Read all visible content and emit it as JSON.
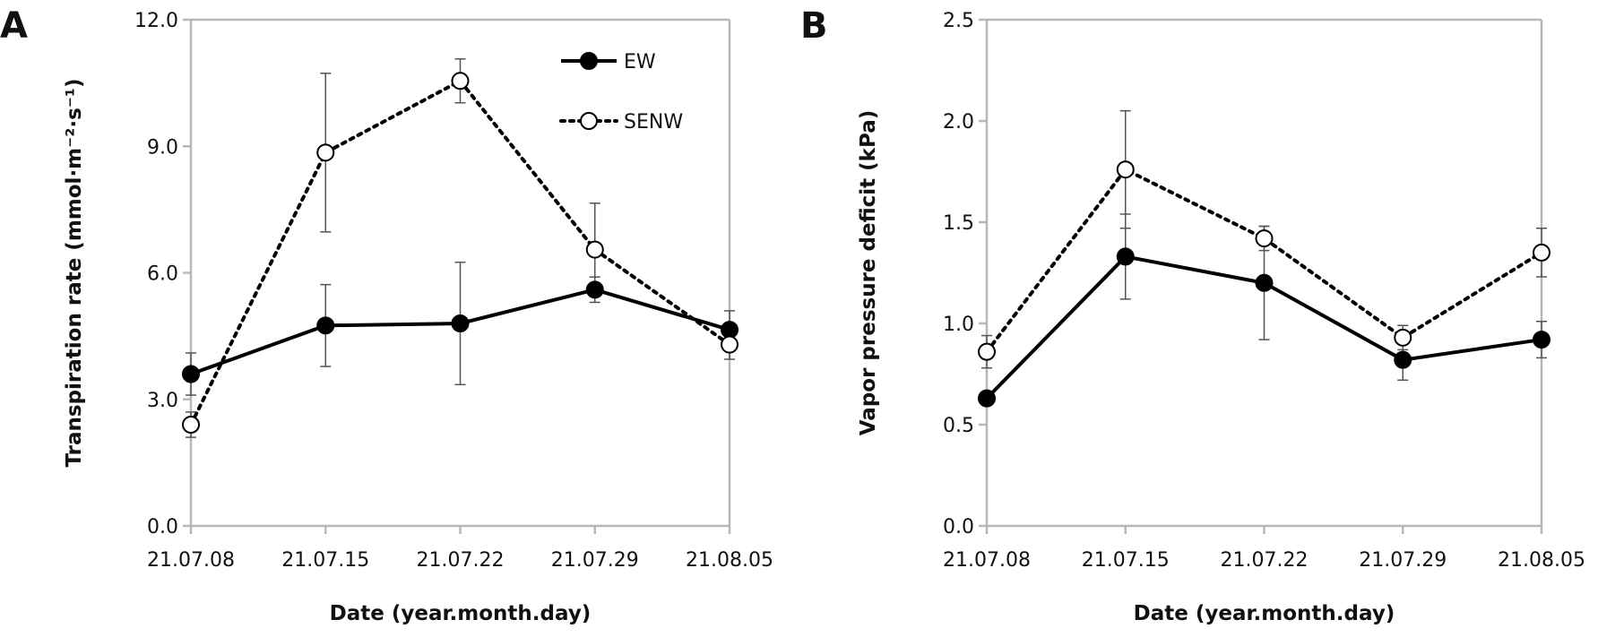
{
  "chart_data": [
    {
      "type": "line",
      "panel_label": "A",
      "categories": [
        "21.07.08",
        "21.07.15",
        "21.07.22",
        "21.07.29",
        "21.08.05"
      ],
      "xlabel": "Date (year.month.day)",
      "ylabel": "Transpiration rate (mmol·m⁻²·s⁻¹)",
      "ylim": [
        0,
        12
      ],
      "yticks": [
        "0.0",
        "3.0",
        "6.0",
        "9.0",
        "12.0"
      ],
      "grid": false,
      "legend": {
        "placement": "top-right",
        "entries": [
          "EW",
          "SENW"
        ]
      },
      "series": [
        {
          "name": "EW",
          "style": "solid",
          "marker": "filled",
          "values": [
            3.6,
            4.75,
            4.8,
            5.6,
            4.65
          ],
          "errors": [
            0.5,
            0.97,
            1.45,
            0.3,
            0.45
          ]
        },
        {
          "name": "SENW",
          "style": "dotted",
          "marker": "open",
          "values": [
            2.4,
            8.85,
            10.55,
            6.55,
            4.3
          ],
          "errors": [
            0.3,
            1.88,
            0.52,
            1.1,
            0.35
          ]
        }
      ]
    },
    {
      "type": "line",
      "panel_label": "B",
      "categories": [
        "21.07.08",
        "21.07.15",
        "21.07.22",
        "21.07.29",
        "21.08.05"
      ],
      "xlabel": "Date (year.month.day)",
      "ylabel": "Vapor pressure deficit (kPa)",
      "ylim": [
        0,
        2.5
      ],
      "yticks": [
        "0.0",
        "0.5",
        "1.0",
        "1.5",
        "2.0",
        "2.5"
      ],
      "grid": false,
      "series": [
        {
          "name": "EW",
          "style": "solid",
          "marker": "filled",
          "values": [
            0.63,
            1.33,
            1.2,
            0.82,
            0.92
          ],
          "errors": [
            0.0,
            0.21,
            0.28,
            0.1,
            0.09
          ]
        },
        {
          "name": "SENW",
          "style": "dotted",
          "marker": "open",
          "values": [
            0.86,
            1.76,
            1.42,
            0.93,
            1.35
          ],
          "errors": [
            0.08,
            0.29,
            0.06,
            0.06,
            0.12
          ]
        }
      ]
    }
  ]
}
